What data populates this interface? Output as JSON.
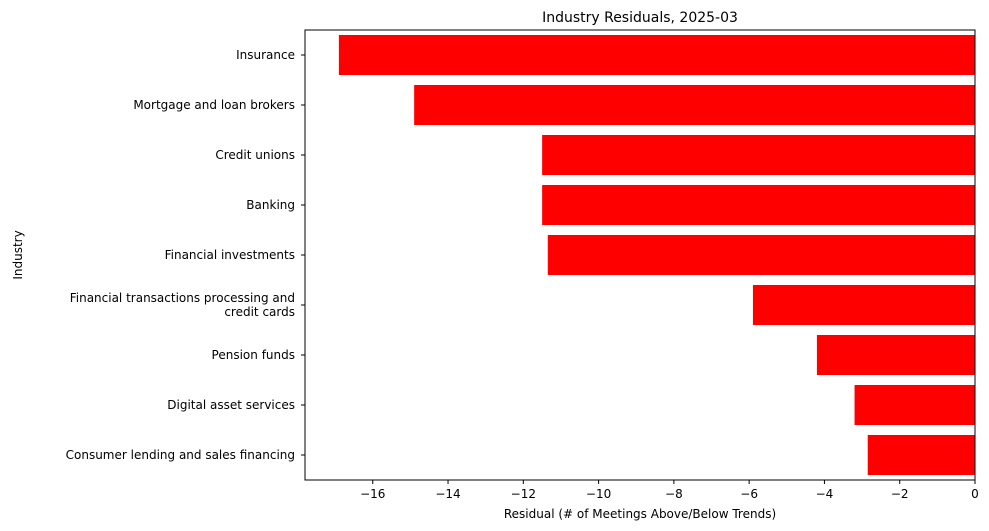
{
  "chart_data": {
    "type": "bar",
    "orientation": "horizontal",
    "title": "Industry Residuals, 2025-03",
    "xlabel": "Residual (# of Meetings Above/Below Trends)",
    "ylabel": "Industry",
    "categories": [
      "Insurance",
      "Mortgage and loan brokers",
      "Credit unions",
      "Banking",
      "Financial investments",
      "Financial transactions processing and\ncredit cards",
      "Pension funds",
      "Digital asset services",
      "Consumer lending and sales financing"
    ],
    "values": [
      -16.9,
      -14.9,
      -11.5,
      -11.5,
      -11.35,
      -5.9,
      -4.2,
      -3.2,
      -2.85
    ],
    "xlim": [
      -17.8,
      0
    ],
    "xticks": [
      -16,
      -14,
      -12,
      -10,
      -8,
      -6,
      -4,
      -2,
      0
    ],
    "xtick_labels": [
      "−16",
      "−14",
      "−12",
      "−10",
      "−8",
      "−6",
      "−4",
      "−2",
      "0"
    ],
    "bar_color": "#ff0000",
    "grid": false,
    "legend": "none"
  }
}
